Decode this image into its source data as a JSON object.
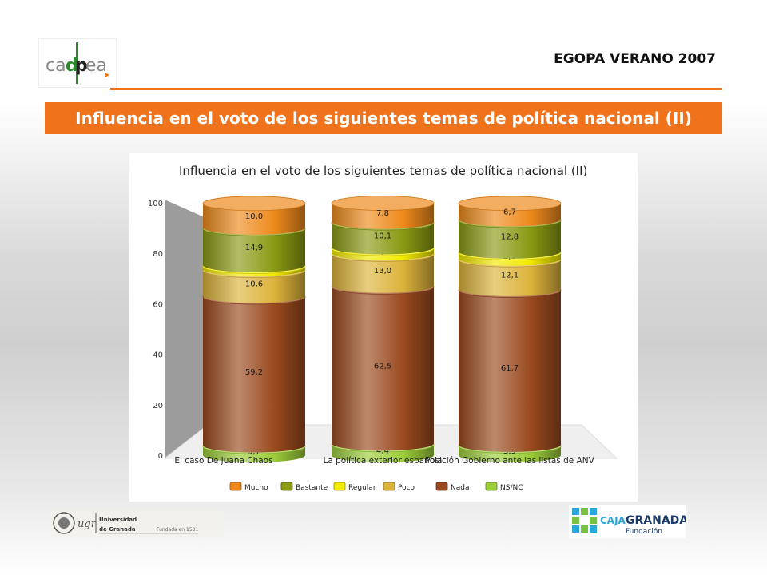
{
  "header": {
    "logo_text": "cadpea",
    "edition": "EGOPA VERANO 2007",
    "title": "Influencia en el voto de los siguientes temas de política nacional (II)"
  },
  "colors": {
    "accent": "#f0731c",
    "Mucho": "#ee8a1c",
    "Bastante": "#8a9a12",
    "Regular": "#f2ea00",
    "Poco": "#dcb33a",
    "Nada": "#9a4a1e",
    "NS/NC": "#9ccd3a"
  },
  "chart_data": {
    "type": "bar",
    "stacked": true,
    "title": "Influencia en el voto de los siguientes temas de política nacional (II)",
    "categories": [
      "El caso De Juana Chaos",
      "La política exterior española",
      "Posición Gobierno ante las listas de ANV"
    ],
    "ylim": [
      0,
      100
    ],
    "yticks": [
      0,
      20,
      40,
      60,
      80,
      100
    ],
    "legend_position": "bottom",
    "series": [
      {
        "name": "NS/NC",
        "values": [
          3.7,
          4.4,
          3.9
        ],
        "labels": [
          "3,7",
          "4,4",
          "3,9"
        ]
      },
      {
        "name": "Nada",
        "values": [
          59.2,
          62.5,
          61.7
        ],
        "labels": [
          "59,2",
          "62,5",
          "61,7"
        ]
      },
      {
        "name": "Poco",
        "values": [
          10.6,
          13.0,
          12.1
        ],
        "labels": [
          "10,6",
          "13,0",
          "12,1"
        ]
      },
      {
        "name": "Regular",
        "values": [
          1.6,
          2.3,
          2.8
        ],
        "labels": [
          "1,6",
          "2,3",
          "2,8"
        ]
      },
      {
        "name": "Bastante",
        "values": [
          14.9,
          10.1,
          12.8
        ],
        "labels": [
          "14,9",
          "10,1",
          "12,8"
        ]
      },
      {
        "name": "Mucho",
        "values": [
          10.0,
          7.8,
          6.7
        ],
        "labels": [
          "10,0",
          "7,8",
          "6,7"
        ]
      }
    ],
    "legend_order": [
      "Mucho",
      "Bastante",
      "Regular",
      "Poco",
      "Nada",
      "NS/NC"
    ]
  },
  "footer": {
    "ugr_short": "ugr",
    "ugr_name_1": "Universidad",
    "ugr_name_2": "de Granada",
    "ugr_founded": "Fundada en 1531",
    "caja_name_1": "CAJA",
    "caja_name_2": "GRANADA",
    "caja_sub": "Fundación"
  }
}
